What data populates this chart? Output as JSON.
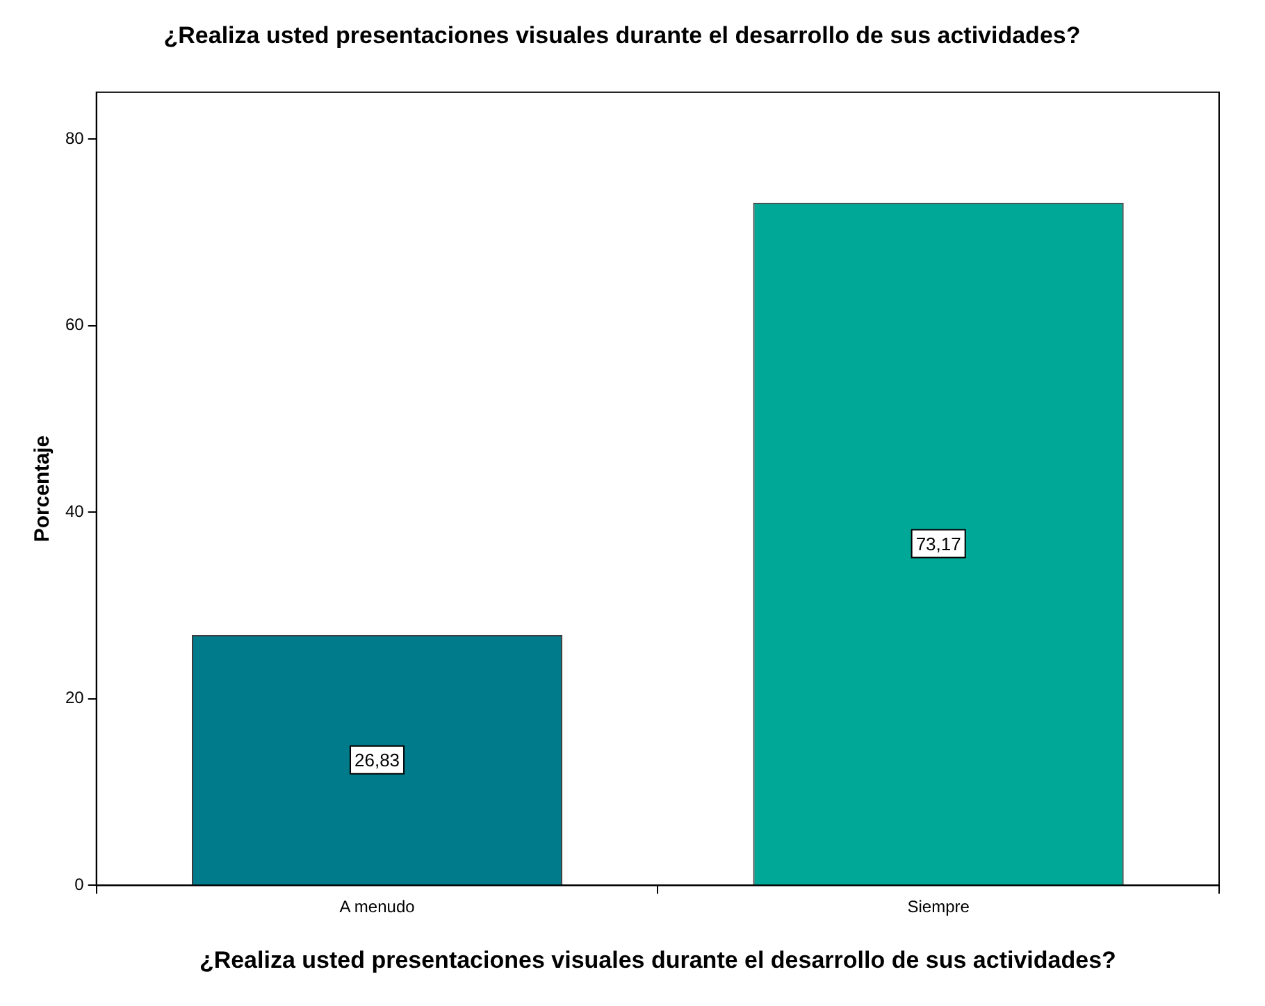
{
  "chart_data": {
    "type": "bar",
    "title": "¿Realiza usted presentaciones visuales durante el desarrollo de sus actividades?",
    "xlabel": "¿Realiza usted presentaciones visuales durante el desarrollo de sus actividades?",
    "ylabel": "Porcentaje",
    "categories": [
      "A menudo",
      "Siempre"
    ],
    "values": [
      26.83,
      73.17
    ],
    "value_labels": [
      "26,83",
      "73,17"
    ],
    "colors": [
      "#007b8b",
      "#00a897"
    ],
    "ylim": [
      0,
      85
    ],
    "yticks": [
      0,
      20,
      40,
      60,
      80
    ],
    "grid": false,
    "legend": false
  }
}
